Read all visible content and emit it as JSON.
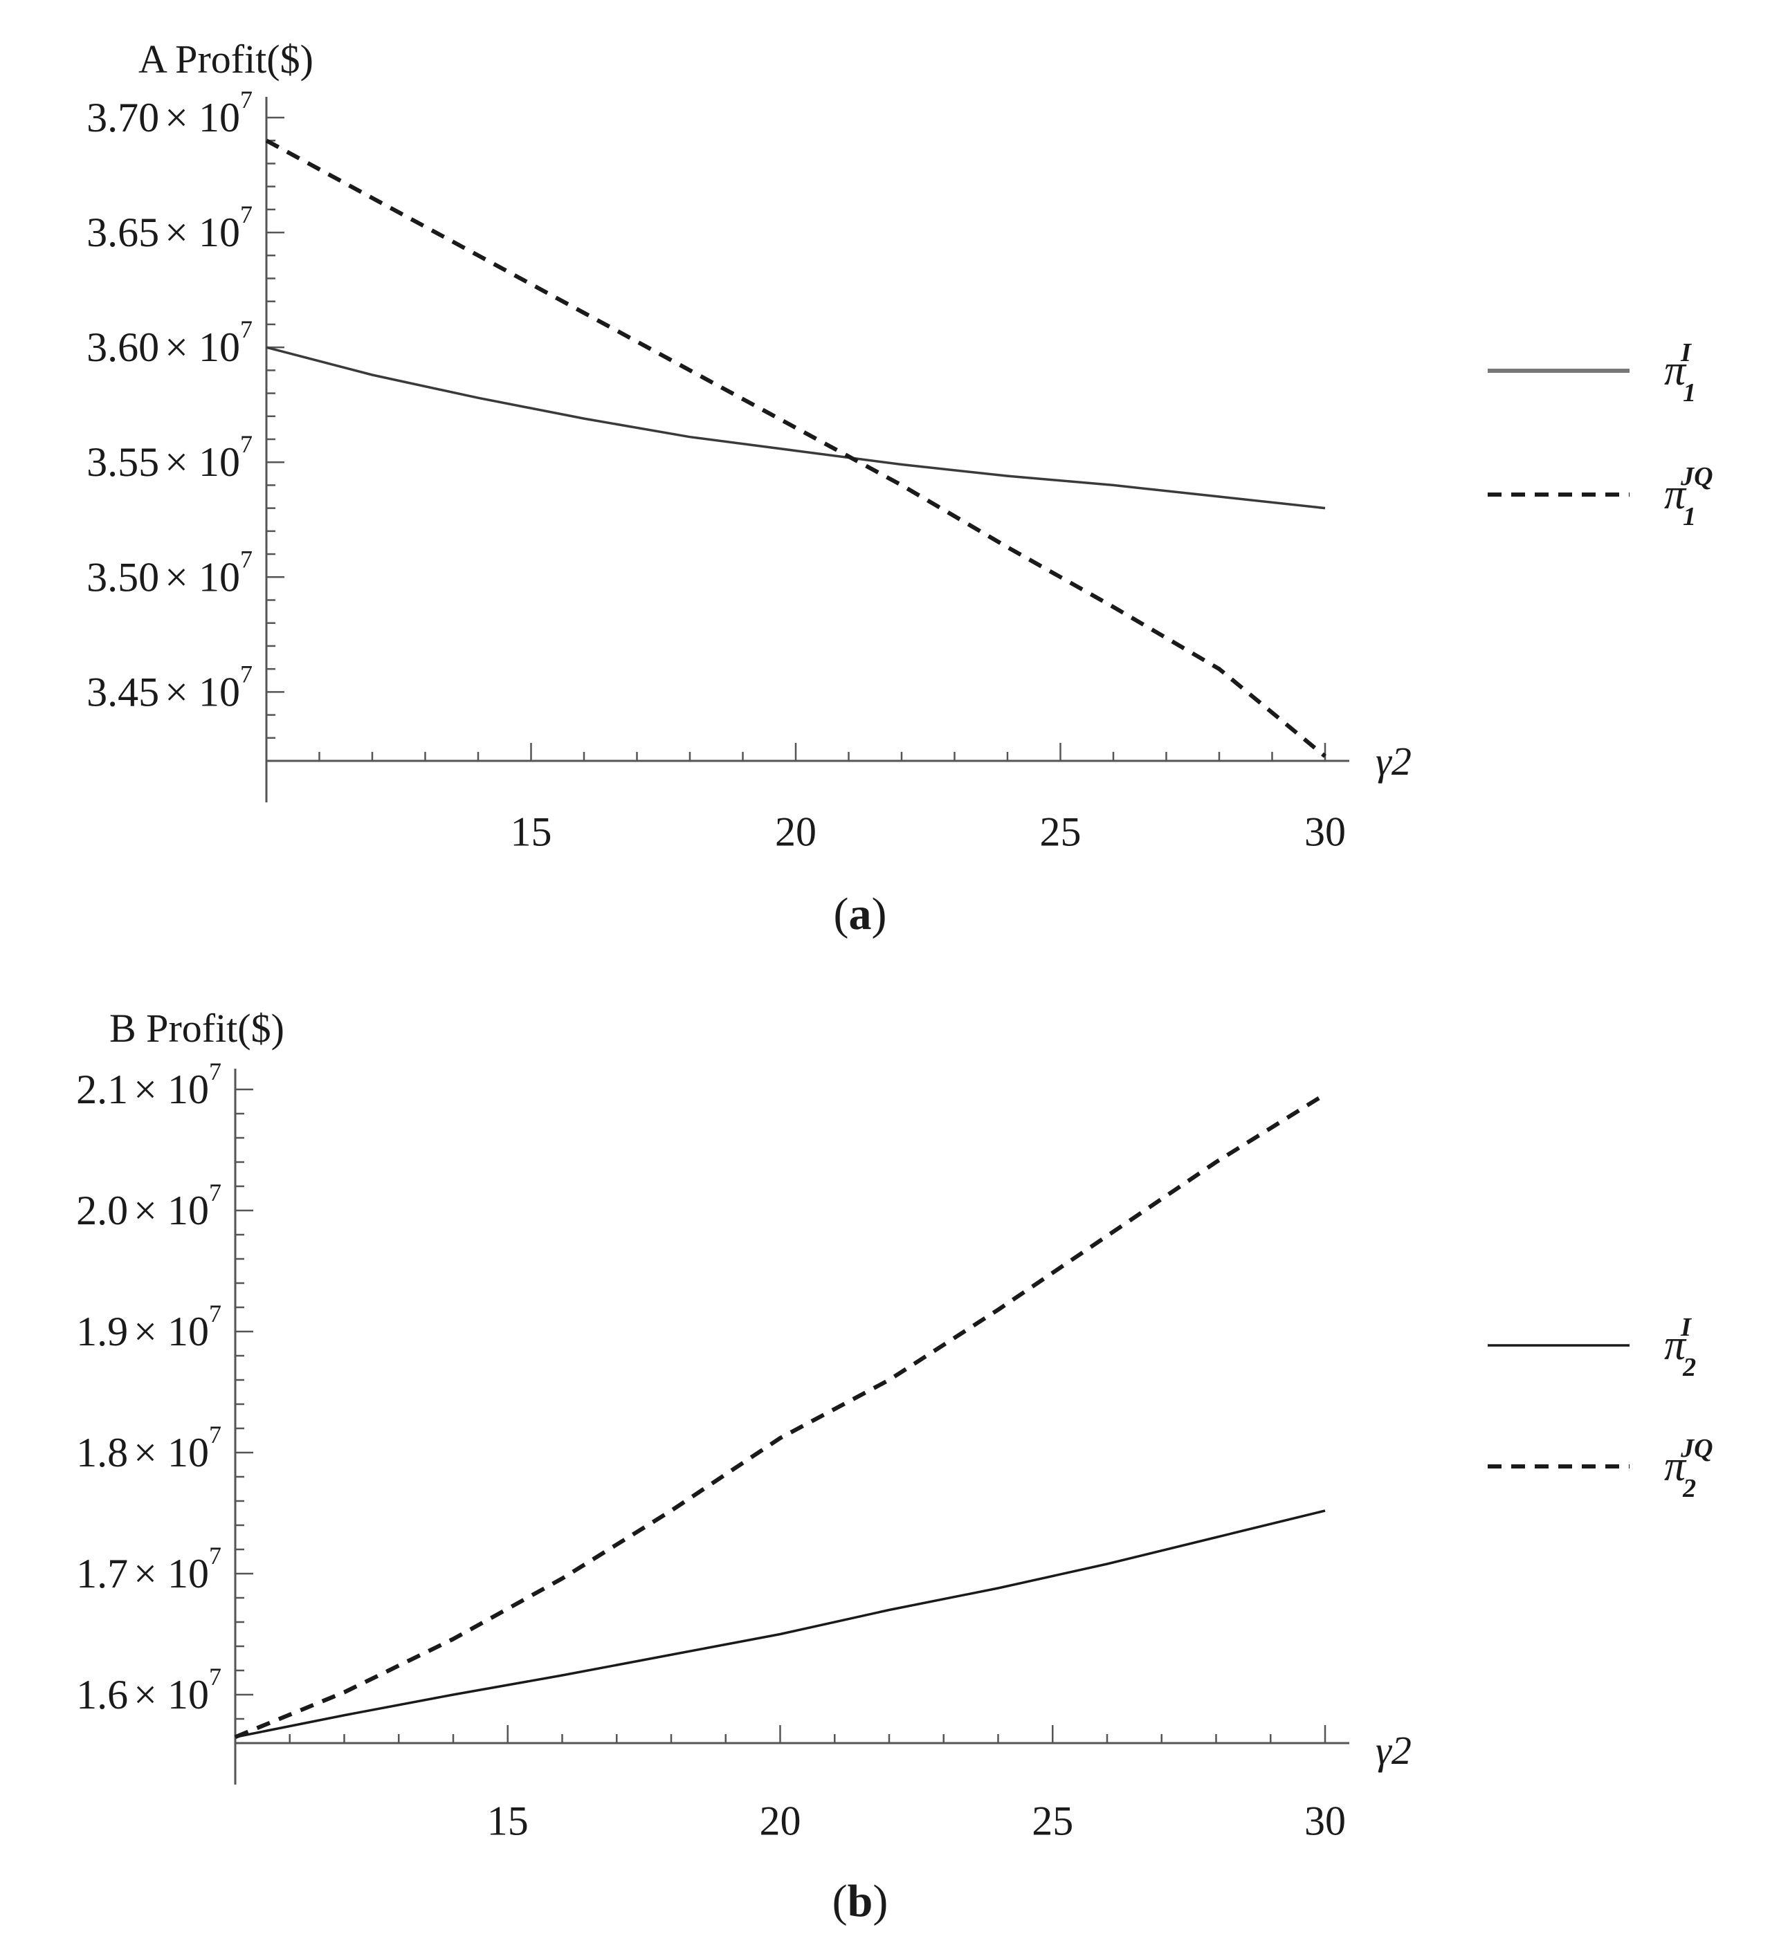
{
  "chart_data": [
    {
      "type": "line",
      "panel_caption": "a",
      "ylabel": "A Profit($)",
      "xlabel": "γ2",
      "x": [
        10,
        12,
        14,
        16,
        18,
        20,
        22,
        24,
        26,
        28,
        30
      ],
      "xticks": [
        15,
        20,
        25,
        30
      ],
      "xlim": [
        10,
        30
      ],
      "ylim": [
        34200000,
        37000000
      ],
      "yticks": [
        {
          "mantissa": "3.70",
          "value": 37000000
        },
        {
          "mantissa": "3.65",
          "value": 36500000
        },
        {
          "mantissa": "3.60",
          "value": 36000000
        },
        {
          "mantissa": "3.55",
          "value": 35500000
        },
        {
          "mantissa": "3.50",
          "value": 35000000
        },
        {
          "mantissa": "3.45",
          "value": 34500000
        }
      ],
      "series": [
        {
          "name": "π1^I",
          "base": "π",
          "sub": "1",
          "sup": "I",
          "style": "solid",
          "color": "#3a3a3a",
          "values": [
            36000000,
            35880000,
            35780000,
            35690000,
            35610000,
            35550000,
            35490000,
            35440000,
            35400000,
            35350000,
            35300000
          ]
        },
        {
          "name": "π1^JQ",
          "base": "π",
          "sub": "1",
          "sup": "JQ",
          "style": "dashed",
          "color": "#1a1a1a",
          "values": [
            36900000,
            36650000,
            36400000,
            36150000,
            35900000,
            35650000,
            35400000,
            35130000,
            34870000,
            34600000,
            34220000
          ]
        }
      ]
    },
    {
      "type": "line",
      "panel_caption": "b",
      "ylabel": "B Profit($)",
      "xlabel": "γ2",
      "x": [
        10,
        12,
        14,
        16,
        18,
        20,
        22,
        24,
        26,
        28,
        30
      ],
      "xticks": [
        15,
        20,
        25,
        30
      ],
      "xlim": [
        10,
        30
      ],
      "ylim": [
        15600000,
        21100000
      ],
      "yticks": [
        {
          "mantissa": "2.1",
          "value": 21000000
        },
        {
          "mantissa": "2.0",
          "value": 20000000
        },
        {
          "mantissa": "1.9",
          "value": 19000000
        },
        {
          "mantissa": "1.8",
          "value": 18000000
        },
        {
          "mantissa": "1.7",
          "value": 17000000
        },
        {
          "mantissa": "1.6",
          "value": 16000000
        }
      ],
      "series": [
        {
          "name": "π2^I",
          "base": "π",
          "sub": "2",
          "sup": "I",
          "style": "solid",
          "color": "#1a1a1a",
          "values": [
            15650000,
            15830000,
            16000000,
            16160000,
            16330000,
            16500000,
            16700000,
            16880000,
            17080000,
            17300000,
            17520000
          ]
        },
        {
          "name": "π2^JQ",
          "base": "π",
          "sub": "2",
          "sup": "JQ",
          "style": "dashed",
          "color": "#1a1a1a",
          "values": [
            15650000,
            16020000,
            16460000,
            16960000,
            17520000,
            18120000,
            18600000,
            19180000,
            19790000,
            20400000,
            20960000
          ]
        }
      ]
    }
  ],
  "tick_suffix": {
    "base": "× 10",
    "exponent": "7"
  }
}
